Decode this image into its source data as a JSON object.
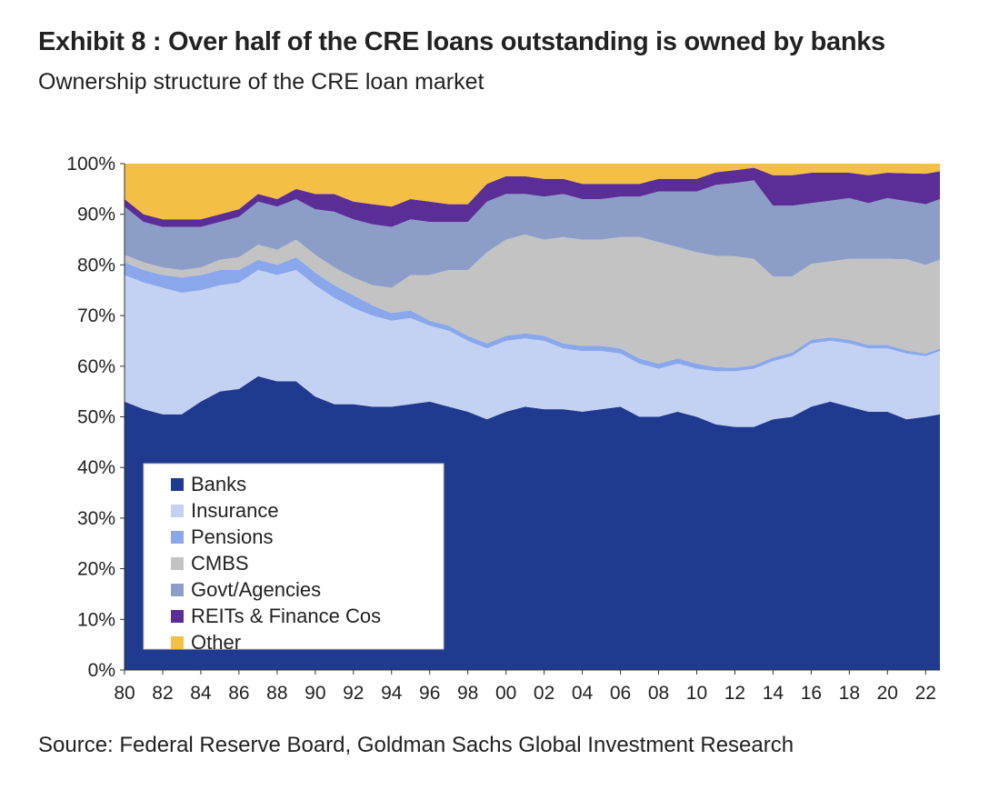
{
  "title": "Exhibit 8 : Over half of the CRE loans outstanding is owned by banks",
  "subtitle": "Ownership structure of the CRE loan market",
  "source": "Source: Federal Reserve Board, Goldman Sachs Global Investment Research",
  "chart_data": {
    "type": "area",
    "stacked": true,
    "x": [
      1980,
      1981,
      1982,
      1983,
      1984,
      1985,
      1986,
      1987,
      1988,
      1989,
      1990,
      1991,
      1992,
      1993,
      1994,
      1995,
      1996,
      1997,
      1998,
      1999,
      2000,
      2001,
      2002,
      2003,
      2004,
      2005,
      2006,
      2007,
      2008,
      2009,
      2010,
      2011,
      2012,
      2013,
      2014,
      2015,
      2016,
      2017,
      2018,
      2019,
      2020,
      2021,
      2022,
      2022.75
    ],
    "x_tick_labels": [
      "80",
      "82",
      "84",
      "86",
      "88",
      "90",
      "92",
      "94",
      "96",
      "98",
      "00",
      "02",
      "04",
      "06",
      "08",
      "10",
      "12",
      "14",
      "16",
      "18",
      "20",
      "22"
    ],
    "y_tick_labels": [
      "0%",
      "10%",
      "20%",
      "30%",
      "40%",
      "50%",
      "60%",
      "70%",
      "80%",
      "90%",
      "100%"
    ],
    "ylim": [
      0,
      100
    ],
    "grid": false,
    "legend_position": "bottom-left",
    "series": [
      {
        "name": "Banks",
        "color": "#1f3a8f",
        "values": [
          53,
          51.5,
          50.5,
          50.5,
          53,
          55,
          55.5,
          58,
          57,
          57,
          54,
          52.5,
          52.5,
          52,
          52,
          52.5,
          53,
          52,
          51,
          49.5,
          51,
          52,
          51.5,
          51.5,
          51,
          51.5,
          52,
          50,
          50,
          51,
          50,
          48.5,
          48,
          48,
          49.5,
          50,
          52,
          53,
          52,
          51,
          51,
          49.5,
          50,
          50.5
        ]
      },
      {
        "name": "Insurance",
        "color": "#c3d1f3",
        "values": [
          25,
          25,
          25,
          24,
          22,
          21,
          21,
          21,
          21,
          22,
          22,
          21,
          19,
          18,
          17,
          17,
          15,
          15,
          14,
          14,
          14,
          13.5,
          13.5,
          12,
          12,
          11.5,
          10.5,
          10.5,
          9.5,
          9.5,
          9.5,
          10.5,
          11,
          11.5,
          11.5,
          12,
          12.5,
          12,
          12.5,
          12.5,
          12.5,
          13,
          12,
          12.5
        ]
      },
      {
        "name": "Pensions",
        "color": "#89a7ea",
        "values": [
          2.5,
          2.5,
          2.5,
          3,
          3,
          3,
          2.5,
          2,
          2,
          2.5,
          2.5,
          2.5,
          2.5,
          2,
          1.5,
          1.5,
          1,
          1,
          1,
          1,
          1,
          1,
          1,
          1,
          1,
          1,
          1,
          1,
          1,
          1,
          1,
          0.8,
          0.7,
          0.7,
          0.7,
          0.7,
          0.7,
          0.7,
          0.7,
          0.7,
          0.7,
          0.6,
          0.5,
          0.5
        ]
      },
      {
        "name": "CMBS",
        "color": "#c3c3c3",
        "values": [
          1.5,
          1.5,
          1.5,
          1.5,
          1.5,
          2,
          2.5,
          3,
          3,
          3.5,
          3.5,
          3.5,
          3.5,
          4,
          5,
          7,
          9,
          11,
          13,
          18,
          19,
          19.5,
          19,
          21,
          21,
          21,
          22,
          24,
          24,
          22,
          22,
          22,
          22,
          21,
          16,
          15,
          15,
          15,
          16,
          17,
          17,
          18,
          17.5,
          17.5
        ]
      },
      {
        "name": "Govt/Agencies",
        "color": "#8c9ec8",
        "values": [
          9.5,
          8,
          8,
          8.5,
          8,
          7.5,
          8,
          8.5,
          8.5,
          8,
          9,
          11,
          11.5,
          12,
          12,
          11,
          10.5,
          9.5,
          9.5,
          10,
          9,
          8,
          8.5,
          8.5,
          8,
          8,
          8,
          8,
          10,
          11,
          12,
          14,
          14.5,
          15.5,
          14,
          14,
          12,
          12,
          12,
          11,
          12,
          11.5,
          12,
          12
        ]
      },
      {
        "name": "REITs & Finance Cos",
        "color": "#5b2d96",
        "values": [
          1.5,
          1.5,
          1.5,
          1.5,
          1.5,
          1.5,
          1.5,
          1.5,
          1.5,
          2,
          3,
          3.5,
          3.5,
          4,
          4,
          4,
          4,
          3.5,
          3.5,
          3.5,
          3.5,
          3.5,
          3.5,
          3,
          3,
          3,
          2.5,
          2.5,
          2.5,
          2.5,
          2.5,
          2.5,
          2.5,
          2.5,
          6,
          6,
          6,
          5.5,
          5,
          5.5,
          5,
          5.5,
          6,
          5.5
        ]
      },
      {
        "name": "Other",
        "color": "#f4bf45",
        "values": [
          7,
          10,
          11,
          11,
          11,
          10,
          9,
          6,
          7,
          5,
          6,
          6,
          7.5,
          8,
          8.5,
          7,
          7.5,
          8,
          8,
          4,
          2.5,
          2.5,
          3,
          3,
          4,
          4,
          4,
          4,
          3,
          3,
          3,
          1.7,
          1.3,
          0.8,
          2.3,
          2.3,
          1.8,
          1.8,
          1.8,
          2.3,
          1.8,
          1.9,
          2,
          1.5
        ]
      }
    ]
  }
}
